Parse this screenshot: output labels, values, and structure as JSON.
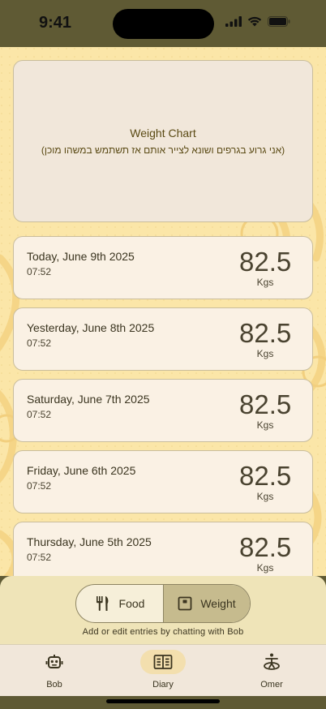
{
  "status_bar": {
    "time": "9:41"
  },
  "chart_card": {
    "title": "Weight Chart",
    "subtitle": "(אני גרוע בגרפים ושונא לצייר אותם אז תשתמש במשהו מוכן)"
  },
  "entries": [
    {
      "date": "Today, June 9th 2025",
      "time": "07:52",
      "value": "82.5",
      "unit": "Kgs"
    },
    {
      "date": "Yesterday, June 8th 2025",
      "time": "07:52",
      "value": "82.5",
      "unit": "Kgs"
    },
    {
      "date": "Saturday, June 7th 2025",
      "time": "07:52",
      "value": "82.5",
      "unit": "Kgs"
    },
    {
      "date": "Friday, June 6th 2025",
      "time": "07:52",
      "value": "82.5",
      "unit": "Kgs"
    },
    {
      "date": "Thursday, June 5th 2025",
      "time": "07:52",
      "value": "82.5",
      "unit": "Kgs"
    }
  ],
  "chat_bar": {
    "food_label": "Food",
    "weight_label": "Weight",
    "selected": "Weight",
    "hint": "Add or edit entries by chatting with Bob"
  },
  "tabs": [
    {
      "label": "Bob",
      "icon": "robot-icon"
    },
    {
      "label": "Diary",
      "icon": "book-icon",
      "active": true
    },
    {
      "label": "Omer",
      "icon": "accessibility-icon"
    }
  ],
  "colors": {
    "background": "#fbe6a8",
    "card": "#faf1e4",
    "accent": "#c6bb8e",
    "status_bar": "#5f5a34"
  }
}
